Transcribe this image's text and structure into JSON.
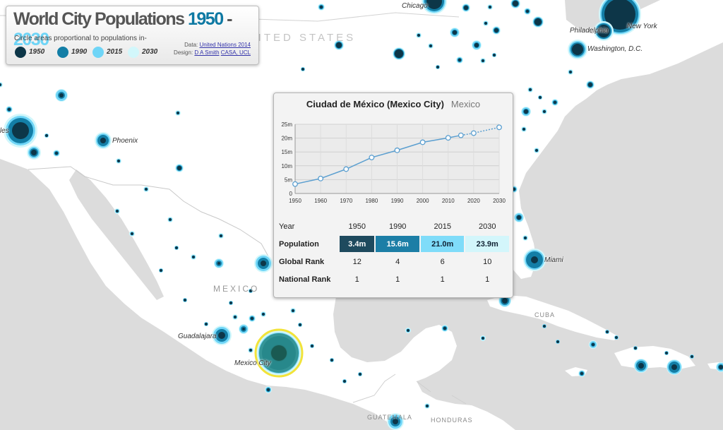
{
  "title": {
    "main": "World City Populations",
    "year_start": "1950",
    "sep": " - ",
    "year_end": "2030"
  },
  "subtitle": "Circle areas proportional to populations in-",
  "legend": [
    {
      "label": "1950",
      "color": "#0d3648"
    },
    {
      "label": "1990",
      "color": "#137ea6"
    },
    {
      "label": "2015",
      "color": "#6fd5f7"
    },
    {
      "label": "2030",
      "color": "#d2f7fb"
    }
  ],
  "credit": {
    "data_prefix": "Data:",
    "data_source": "United Nations 2014",
    "design_prefix": "Design:",
    "designer": "D A Smith",
    "org": "CASA, UCL"
  },
  "map_labels": {
    "countries": {
      "us": "UNITED STATES",
      "mexico": "MEXICO",
      "cuba": "CUBA",
      "honduras": "HONDURAS",
      "guatemala": "GUATEMALA"
    },
    "cities": {
      "chicago": "Chicago",
      "philadelphia": "Philadelphia",
      "new_york": "New York",
      "washington": "Washington, D.C.",
      "los_angeles": "Los Angeles",
      "phoenix": "Phoenix",
      "miami": "Miami",
      "guadalajara": "Guadalajara",
      "mexico_city": "Mexico City"
    }
  },
  "popup": {
    "city": "Ciudad de México (Mexico City)",
    "country": "Mexico",
    "table": {
      "row_labels": {
        "year": "Year",
        "population": "Population",
        "global_rank": "Global Rank",
        "national_rank": "National Rank"
      },
      "years": [
        "1950",
        "1990",
        "2015",
        "2030"
      ],
      "population": [
        "3.4m",
        "15.6m",
        "21.0m",
        "23.9m"
      ],
      "global_rank": [
        "12",
        "4",
        "6",
        "10"
      ],
      "national_rank": [
        "1",
        "1",
        "1",
        "1"
      ]
    }
  },
  "chart_data": {
    "type": "line",
    "title": "",
    "xlabel": "",
    "ylabel": "",
    "x": [
      1950,
      1960,
      1970,
      1980,
      1990,
      2000,
      2010,
      2015,
      2020,
      2030
    ],
    "values": [
      3.4,
      5.4,
      8.8,
      13.0,
      15.6,
      18.5,
      20.1,
      21.0,
      21.8,
      23.9
    ],
    "projected_from": 2015,
    "xlim": [
      1950,
      2030
    ],
    "ylim": [
      0,
      25
    ],
    "x_ticks": [
      "1950",
      "1960",
      "1970",
      "1980",
      "1990",
      "2000",
      "2010",
      "2020",
      "2030"
    ],
    "y_ticks": [
      "0",
      "5m",
      "10m",
      "15m",
      "20m",
      "25m"
    ],
    "grid": true,
    "line_color": "#5b9fd0"
  }
}
